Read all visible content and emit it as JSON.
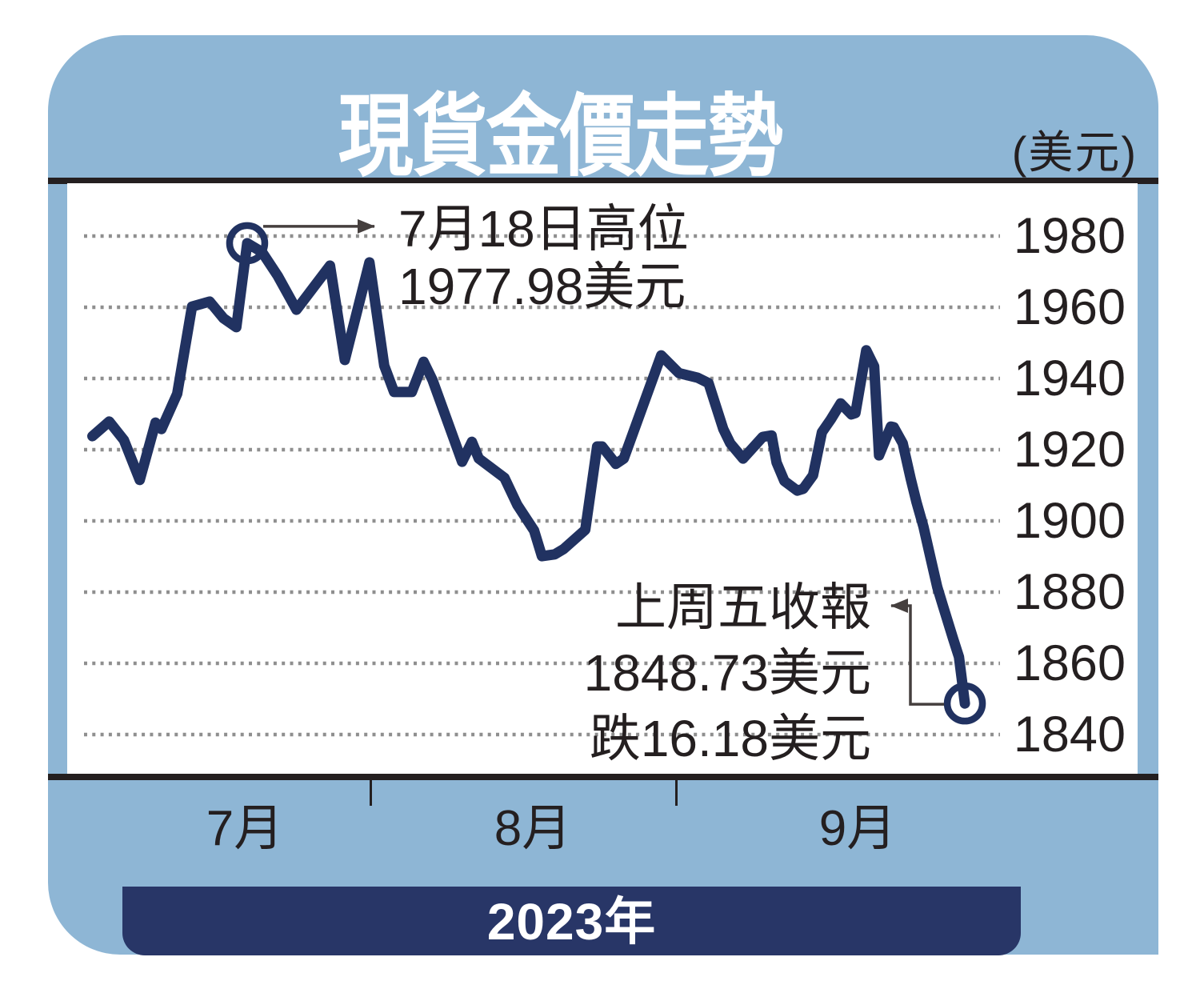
{
  "header": {
    "title": "現貨金價走勢",
    "unit_label": "(美元)"
  },
  "x_axis": {
    "months": [
      "7月",
      "8月",
      "9月"
    ],
    "year_label": "2023年"
  },
  "annotations": {
    "high": {
      "line1": "7月18日高位",
      "line2": "1977.98美元"
    },
    "close": {
      "line1": "上周五收報",
      "line2": "1848.73美元",
      "line3": "跌16.18美元"
    }
  },
  "chart_data": {
    "type": "line",
    "title": "現貨金價走勢",
    "unit": "美元",
    "x_categories": [
      "7月",
      "8月",
      "9月"
    ],
    "year": "2023年",
    "y_ticks": [
      1980,
      1960,
      1940,
      1920,
      1900,
      1880,
      1860,
      1840
    ],
    "y_range_displayed": [
      1835,
      1992
    ],
    "grid": "dotted-horizontal",
    "legend": "none",
    "series": [
      {
        "name": "現貨金價",
        "x_unit": "days since 2023-07-01",
        "points": [
          [
            2.8,
            1923.8
          ],
          [
            4.5,
            1927.9
          ],
          [
            6.0,
            1922.7
          ],
          [
            7.6,
            1911.5
          ],
          [
            9.2,
            1927.6
          ],
          [
            9.8,
            1925.8
          ],
          [
            11.4,
            1935.7
          ],
          [
            12.9,
            1960.2
          ],
          [
            14.7,
            1961.6
          ],
          [
            16.1,
            1956.9
          ],
          [
            17.4,
            1954.4
          ],
          [
            18.5,
            1978.0
          ],
          [
            20.0,
            1975.5
          ],
          [
            21.6,
            1968.8
          ],
          [
            23.5,
            1959.3
          ],
          [
            26.9,
            1971.7
          ],
          [
            28.4,
            1945.2
          ],
          [
            30.9,
            1972.6
          ],
          [
            32.4,
            1943.6
          ],
          [
            33.4,
            1936.2
          ],
          [
            35.2,
            1936.2
          ],
          [
            36.4,
            1944.7
          ],
          [
            37.3,
            1939.6
          ],
          [
            40.3,
            1916.6
          ],
          [
            41.3,
            1922.2
          ],
          [
            42.0,
            1917.5
          ],
          [
            44.6,
            1912.1
          ],
          [
            45.9,
            1904.5
          ],
          [
            47.6,
            1897.3
          ],
          [
            48.4,
            1890.1
          ],
          [
            49.7,
            1890.6
          ],
          [
            50.6,
            1892.1
          ],
          [
            52.8,
            1897.5
          ],
          [
            54.0,
            1920.9
          ],
          [
            54.5,
            1920.9
          ],
          [
            55.9,
            1916.0
          ],
          [
            56.7,
            1917.5
          ],
          [
            60.5,
            1946.5
          ],
          [
            62.3,
            1941.5
          ],
          [
            64.2,
            1940.2
          ],
          [
            65.3,
            1938.7
          ],
          [
            66.8,
            1925.8
          ],
          [
            67.5,
            1921.8
          ],
          [
            68.8,
            1917.5
          ],
          [
            70.8,
            1923.6
          ],
          [
            71.7,
            1924.0
          ],
          [
            72.2,
            1916.4
          ],
          [
            73.0,
            1911.2
          ],
          [
            74.3,
            1908.5
          ],
          [
            74.9,
            1909.0
          ],
          [
            75.9,
            1912.8
          ],
          [
            76.8,
            1924.9
          ],
          [
            77.7,
            1928.5
          ],
          [
            78.7,
            1933.0
          ],
          [
            79.8,
            1929.9
          ],
          [
            80.2,
            1930.3
          ],
          [
            81.3,
            1947.9
          ],
          [
            82.1,
            1943.4
          ],
          [
            82.6,
            1918.4
          ],
          [
            83.8,
            1926.5
          ],
          [
            84.1,
            1926.3
          ],
          [
            85.0,
            1921.8
          ],
          [
            85.8,
            1911.9
          ],
          [
            86.4,
            1905.2
          ],
          [
            87.1,
            1898.4
          ],
          [
            87.8,
            1889.9
          ],
          [
            88.5,
            1881.4
          ],
          [
            89.1,
            1876.0
          ],
          [
            90.1,
            1867.0
          ],
          [
            90.7,
            1861.8
          ],
          [
            91.3,
            1848.73
          ]
        ]
      }
    ],
    "key_points": {
      "high": {
        "label": "7月18日高位",
        "price": 1977.98
      },
      "last_close": {
        "label": "上周五收報",
        "price": 1848.73,
        "change": -16.18
      }
    },
    "colors": {
      "card_blue": "#8eb6d5",
      "line_navy": "#213261",
      "banner_navy": "#283667",
      "ink": "#241f20",
      "grid_gray": "#8f8f8f",
      "title_white": "#ffffff"
    }
  }
}
